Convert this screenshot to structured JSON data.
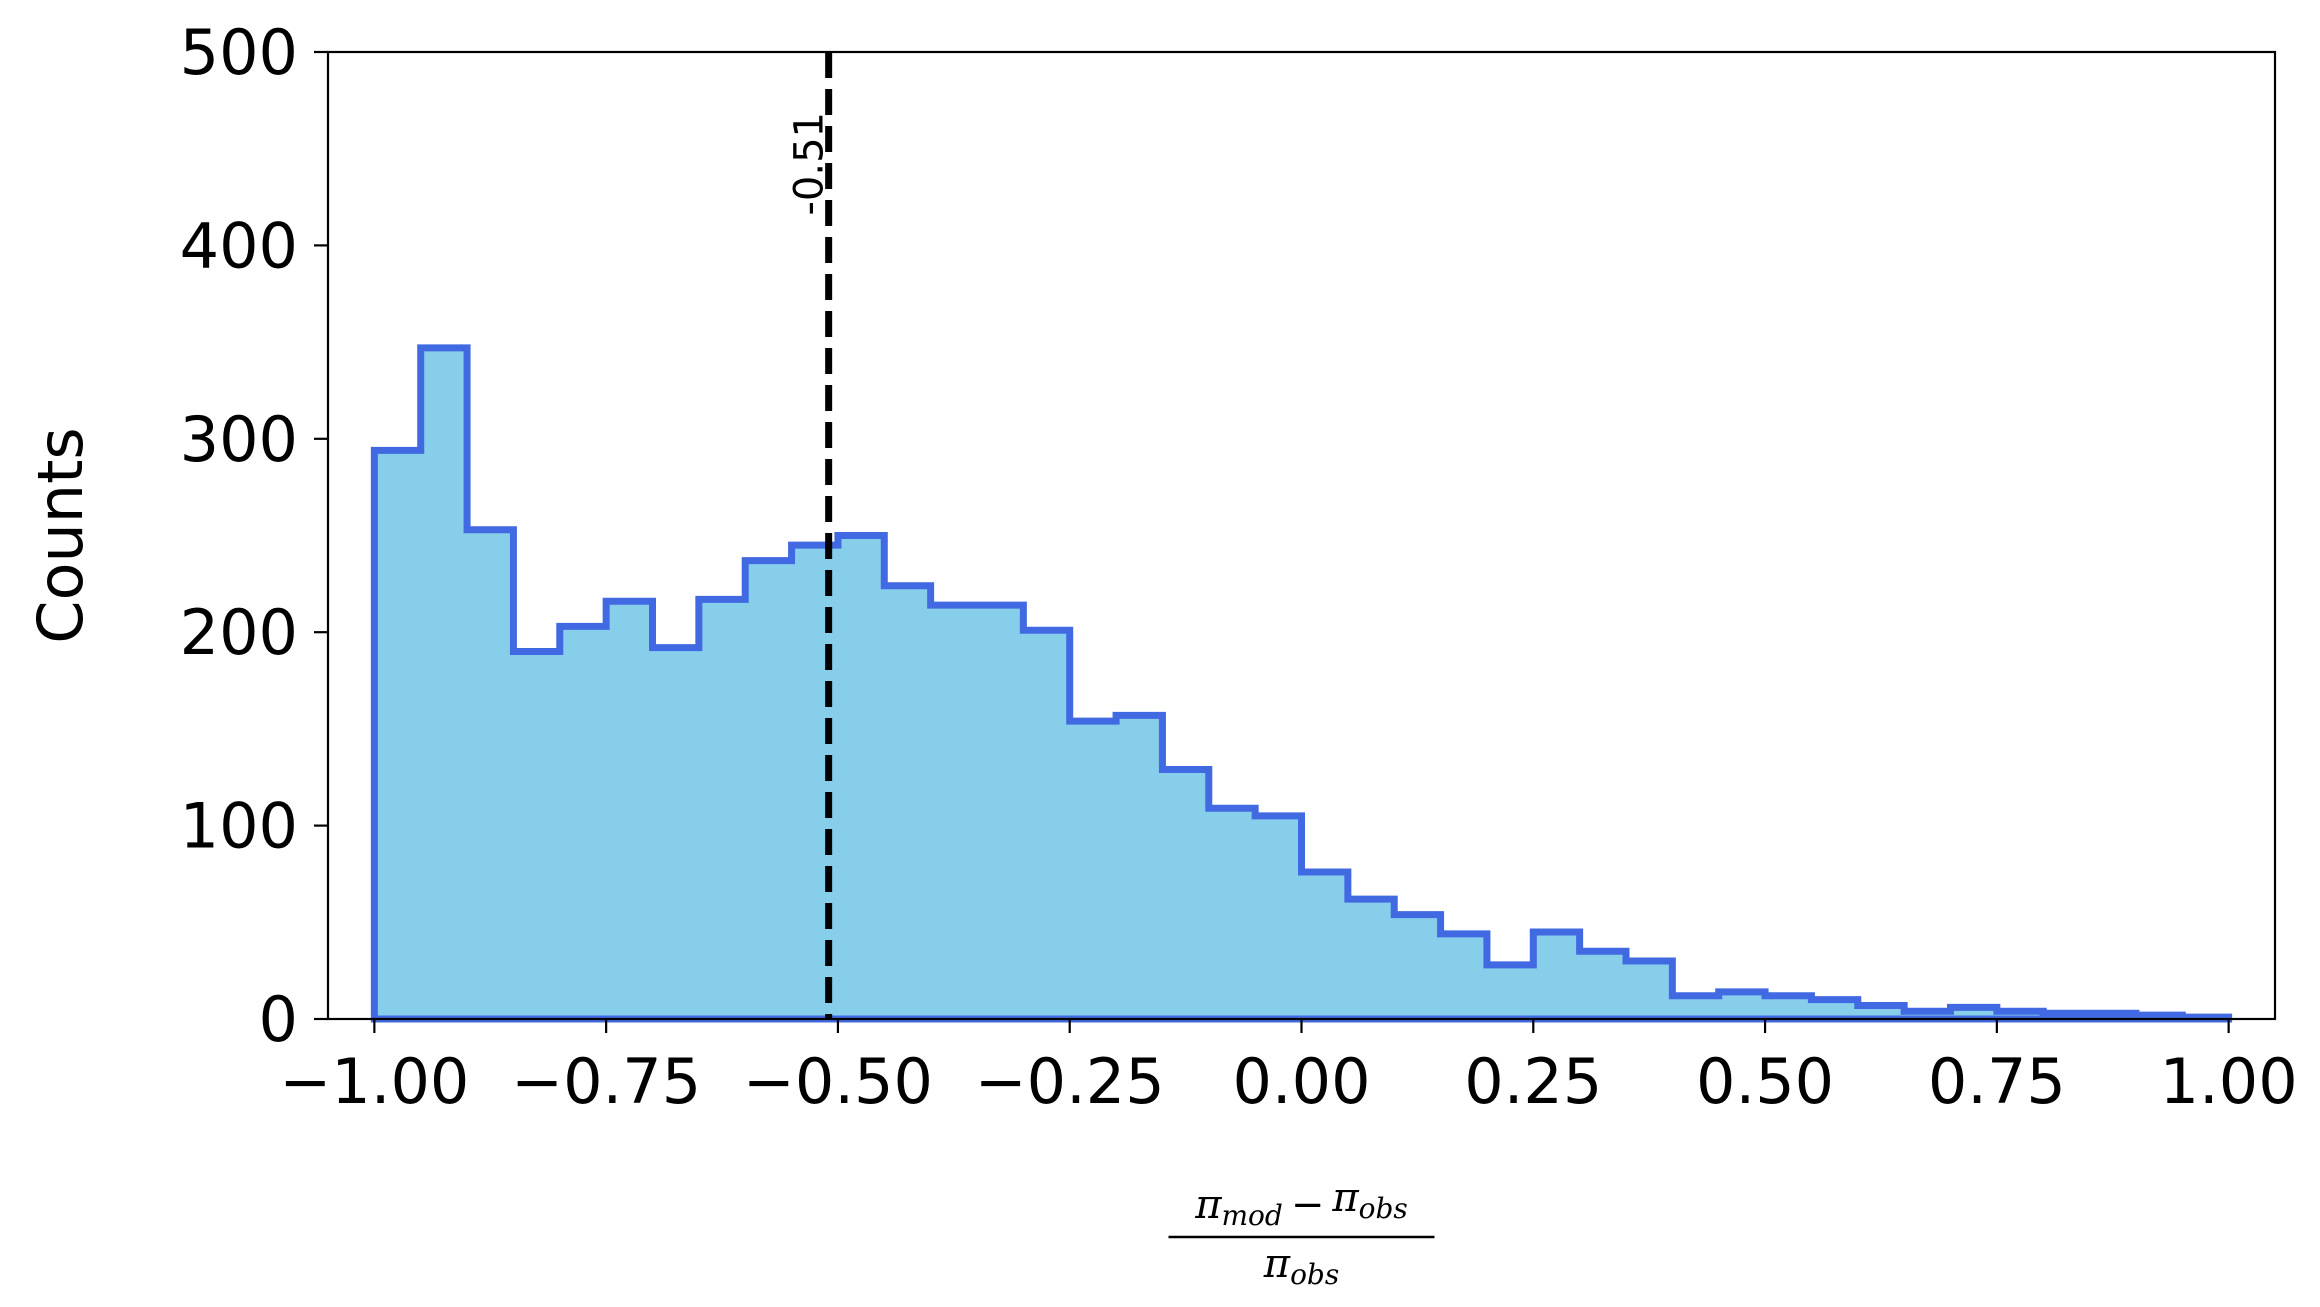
{
  "chart_data": {
    "type": "histogram",
    "ylabel": "Counts",
    "xlabel": {
      "numerator": {
        "term1_base": "π",
        "term1_sub": "mod",
        "operator": "−",
        "term2_base": "π",
        "term2_sub": "obs"
      },
      "denominator": {
        "base": "π",
        "sub": "obs"
      }
    },
    "xlim": [
      -1.05,
      1.05
    ],
    "ylim": [
      0,
      500
    ],
    "xticks": [
      -1.0,
      -0.75,
      -0.5,
      -0.25,
      0.0,
      0.25,
      0.5,
      0.75,
      1.0
    ],
    "xtick_labels": [
      "−1.00",
      "−0.75",
      "−0.50",
      "−0.25",
      "0.00",
      "0.25",
      "0.50",
      "0.75",
      "1.00"
    ],
    "yticks": [
      0,
      100,
      200,
      300,
      400,
      500
    ],
    "ytick_labels": [
      "0",
      "100",
      "200",
      "300",
      "400",
      "500"
    ],
    "bin_range": [
      -1.0,
      1.0
    ],
    "bin_count": 40,
    "counts": [
      294,
      347,
      253,
      190,
      203,
      216,
      192,
      217,
      237,
      245,
      250,
      224,
      214,
      214,
      201,
      154,
      157,
      129,
      109,
      105,
      76,
      62,
      54,
      44,
      28,
      45,
      35,
      30,
      12,
      14,
      12,
      10,
      7,
      4,
      6,
      4,
      3,
      3,
      2,
      1
    ],
    "fill_color": "#87CEEB",
    "edge_color": "#4169E1",
    "median_line": {
      "x": -0.51,
      "label": "-0.51",
      "color": "#000000",
      "style": "dashed"
    }
  }
}
